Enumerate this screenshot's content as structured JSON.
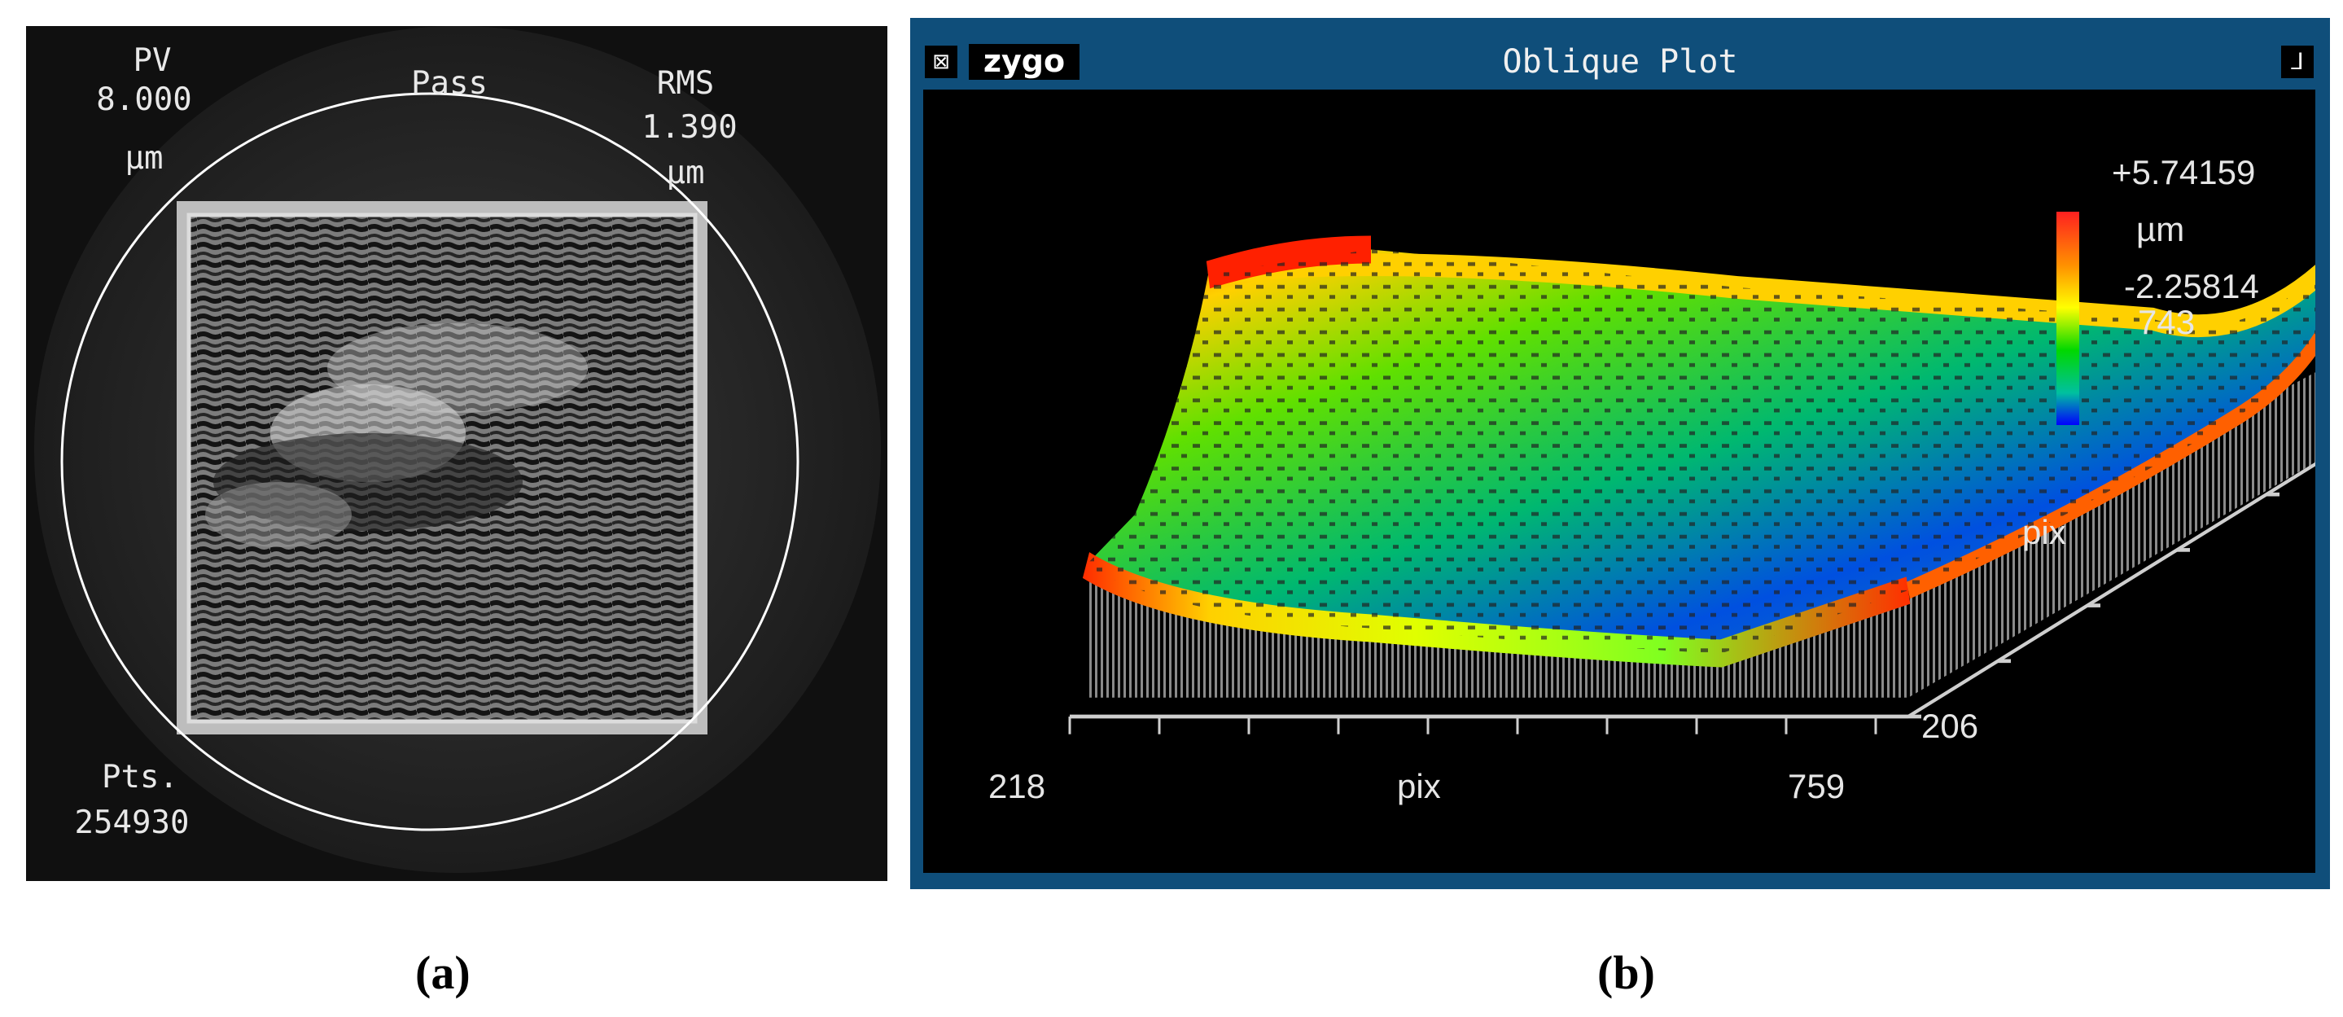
{
  "panel_a": {
    "pv_label": "PV",
    "pv_value": "8.000",
    "pv_unit": "µm",
    "status": "Pass",
    "rms_label": "RMS",
    "rms_value": "1.390",
    "rms_unit": "µm",
    "pts_label": "Pts.",
    "pts_value": "254930"
  },
  "panel_b": {
    "window_title": "Oblique Plot",
    "logo_text": "zygo",
    "close_glyph": "⊠",
    "pin_glyph": "⅃",
    "scale_max": "+5.74159",
    "scale_unit": "µm",
    "scale_min": "-2.25814",
    "scale_min_cont": "743",
    "x_axis_min": "218",
    "x_axis_label": "pix",
    "x_axis_max": "759",
    "y_axis_label": "pix",
    "y_axis_min": "206",
    "colormap": [
      "#ff0000",
      "#ff7f00",
      "#ffff00",
      "#00ff00",
      "#00ffa0",
      "#0000ff"
    ]
  },
  "captions": {
    "a": "(a)",
    "b": "(b)"
  }
}
